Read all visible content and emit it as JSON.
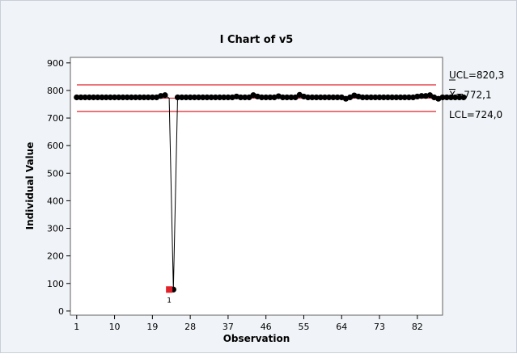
{
  "chart_data": {
    "type": "line",
    "title": "I Chart of v5",
    "xlabel": "Observation",
    "ylabel": "Individual Value",
    "xlim": [
      -0.5,
      88
    ],
    "ylim": [
      -15,
      920
    ],
    "x_ticks": [
      1,
      10,
      19,
      28,
      37,
      46,
      55,
      64,
      73,
      82
    ],
    "y_ticks": [
      0,
      100,
      200,
      300,
      400,
      500,
      600,
      700,
      800,
      900
    ],
    "grid": false,
    "series": [
      {
        "values": [
          775,
          775,
          775,
          775,
          775,
          775,
          775,
          775,
          775,
          775,
          775,
          775,
          775,
          775,
          775,
          775,
          775,
          775,
          775,
          775,
          780,
          783,
          772,
          78,
          775,
          775,
          775,
          775,
          775,
          775,
          775,
          775,
          775,
          775,
          775,
          775,
          775,
          775,
          778,
          775,
          775,
          775,
          783,
          778,
          775,
          775,
          775,
          775,
          779,
          775,
          775,
          775,
          775,
          784,
          778,
          775,
          775,
          775,
          775,
          775,
          775,
          775,
          775,
          775,
          770,
          775,
          782,
          778,
          775,
          775,
          775,
          775,
          775,
          775,
          775,
          775,
          775,
          775,
          775,
          775,
          775,
          778,
          780,
          780,
          783,
          775,
          770,
          775,
          775,
          775,
          775,
          775,
          775
        ]
      }
    ],
    "flagged_points": [
      {
        "observation": 23,
        "value": 78,
        "label": "1"
      }
    ],
    "control_limits": [
      {
        "name": "UCL",
        "label": "UCL=820,3",
        "value": 820.3
      },
      {
        "name": "X-bar",
        "label": "X=772,1",
        "value": 772.1
      },
      {
        "name": "LCL",
        "label": "LCL=724,0",
        "value": 724.0
      }
    ],
    "colors": {
      "line": "#000000",
      "limit": "#e0222a",
      "flag": "#e0222a",
      "frame_bg": "#f0f3f7",
      "plot_bg": "#ffffff"
    }
  }
}
